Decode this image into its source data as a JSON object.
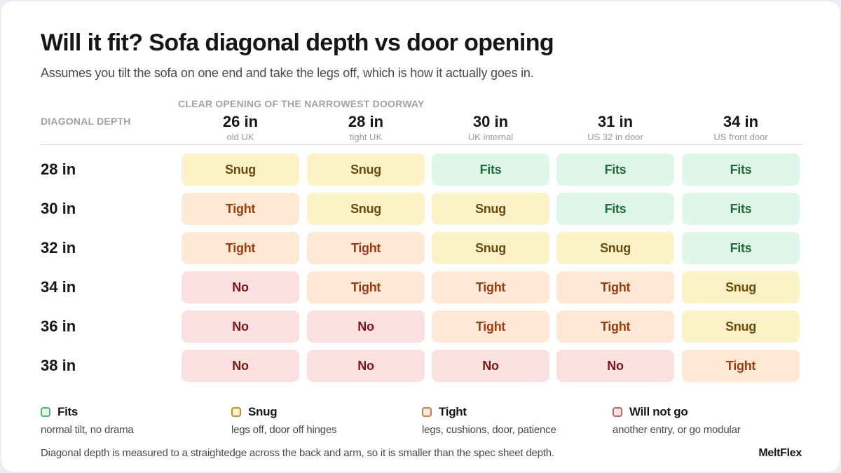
{
  "title": "Will it fit? Sofa diagonal depth vs door opening",
  "subtitle": "Assumes you tilt the sofa on one end and take the legs off, which is how it actually goes in.",
  "column_caption": "CLEAR OPENING OF THE NARROWEST DOORWAY",
  "row_caption": "DIAGONAL DEPTH",
  "colors": {
    "fits": {
      "bg": "#dff7e8",
      "fg": "#1f6b3b",
      "border": "#5aa877"
    },
    "snug": {
      "bg": "#fdf1c8",
      "fg": "#6b4a0b",
      "border": "#b8912f"
    },
    "tight": {
      "bg": "#fde8d6",
      "fg": "#9a3b12",
      "border": "#c87a52"
    },
    "no": {
      "bg": "#fbe0e1",
      "fg": "#7a1818",
      "border": "#b06a6c"
    }
  },
  "chart_data": {
    "type": "table",
    "columns": [
      {
        "value": "26 in",
        "note": "old UK"
      },
      {
        "value": "28 in",
        "note": "tight UK"
      },
      {
        "value": "30 in",
        "note": "UK internal"
      },
      {
        "value": "31 in",
        "note": "US 32 in door"
      },
      {
        "value": "34 in",
        "note": "US front door"
      }
    ],
    "rows": [
      {
        "label": "28 in",
        "cells": [
          {
            "status": "snug",
            "text": "Snug"
          },
          {
            "status": "snug",
            "text": "Snug"
          },
          {
            "status": "fits",
            "text": "Fits"
          },
          {
            "status": "fits",
            "text": "Fits"
          },
          {
            "status": "fits",
            "text": "Fits"
          }
        ]
      },
      {
        "label": "30 in",
        "cells": [
          {
            "status": "tight",
            "text": "Tight"
          },
          {
            "status": "snug",
            "text": "Snug"
          },
          {
            "status": "snug",
            "text": "Snug"
          },
          {
            "status": "fits",
            "text": "Fits"
          },
          {
            "status": "fits",
            "text": "Fits"
          }
        ]
      },
      {
        "label": "32 in",
        "cells": [
          {
            "status": "tight",
            "text": "Tight"
          },
          {
            "status": "tight",
            "text": "Tight"
          },
          {
            "status": "snug",
            "text": "Snug"
          },
          {
            "status": "snug",
            "text": "Snug"
          },
          {
            "status": "fits",
            "text": "Fits"
          }
        ]
      },
      {
        "label": "34 in",
        "cells": [
          {
            "status": "no",
            "text": "No"
          },
          {
            "status": "tight",
            "text": "Tight"
          },
          {
            "status": "tight",
            "text": "Tight"
          },
          {
            "status": "tight",
            "text": "Tight"
          },
          {
            "status": "snug",
            "text": "Snug"
          }
        ]
      },
      {
        "label": "36 in",
        "cells": [
          {
            "status": "no",
            "text": "No"
          },
          {
            "status": "no",
            "text": "No"
          },
          {
            "status": "tight",
            "text": "Tight"
          },
          {
            "status": "tight",
            "text": "Tight"
          },
          {
            "status": "snug",
            "text": "Snug"
          }
        ]
      },
      {
        "label": "38 in",
        "cells": [
          {
            "status": "no",
            "text": "No"
          },
          {
            "status": "no",
            "text": "No"
          },
          {
            "status": "no",
            "text": "No"
          },
          {
            "status": "no",
            "text": "No"
          },
          {
            "status": "tight",
            "text": "Tight"
          }
        ]
      }
    ]
  },
  "legend": [
    {
      "status": "fits",
      "label": "Fits",
      "description": "normal tilt, no drama"
    },
    {
      "status": "snug",
      "label": "Snug",
      "description": "legs off, door off hinges"
    },
    {
      "status": "tight",
      "label": "Tight",
      "description": "legs, cushions, door, patience"
    },
    {
      "status": "no",
      "label": "Will not go",
      "description": "another entry, or go modular"
    }
  ],
  "footnote": "Diagonal depth is measured to a straightedge across the back and arm, so it is smaller than the spec sheet depth.",
  "brand": "MeltFlex"
}
